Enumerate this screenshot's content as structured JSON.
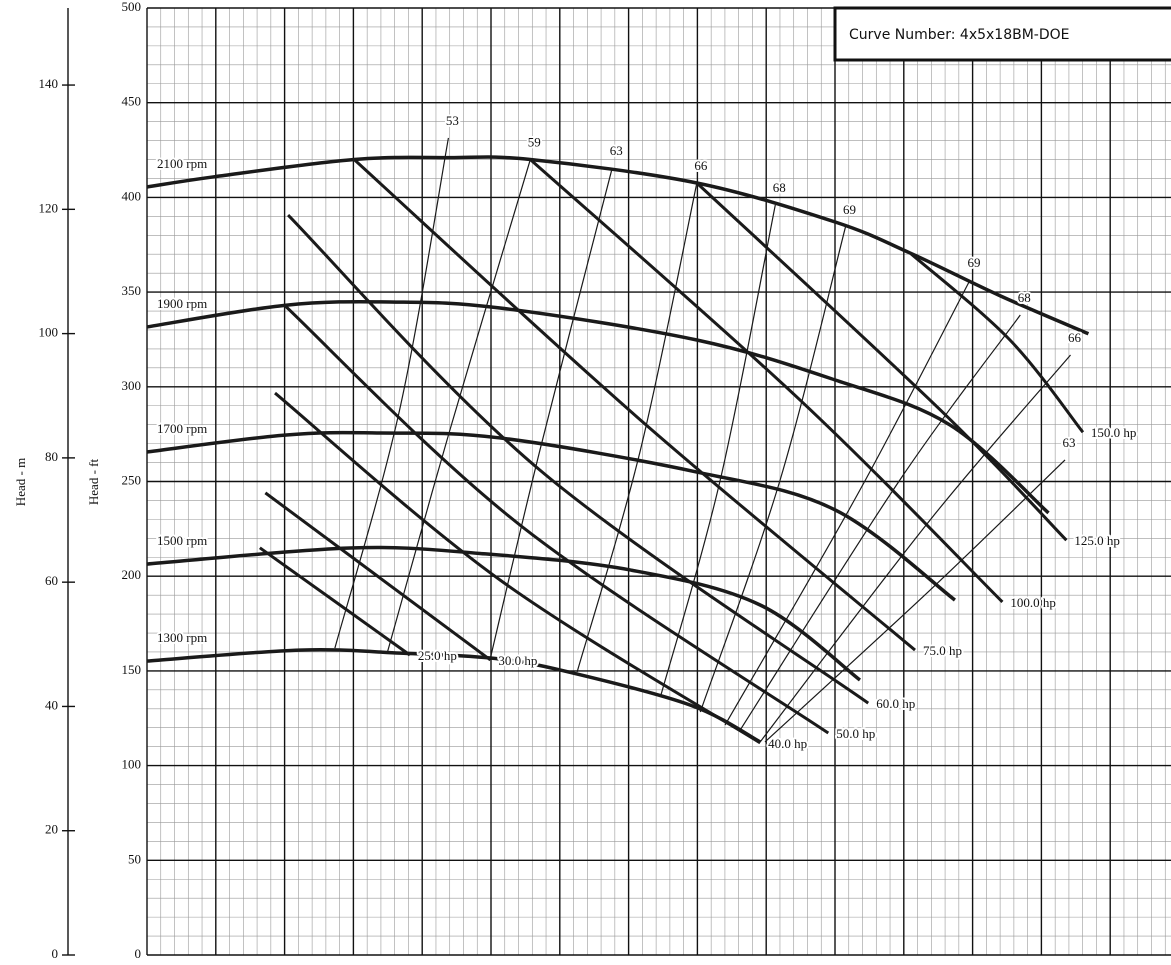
{
  "chart_data": {
    "type": "line",
    "box_text": "Curve Number: 4x5x18BM-DOE",
    "y_label": "Head - ft",
    "y2_label": "Head - m",
    "xlim": [
      0,
      14.88
    ],
    "ylim": [
      0,
      500
    ],
    "yticks": [
      0,
      50,
      100,
      150,
      200,
      250,
      300,
      350,
      400,
      450,
      500
    ],
    "y2lim": [
      0,
      152.4
    ],
    "y2ticks": [
      0,
      20,
      40,
      60,
      80,
      100,
      120,
      140
    ],
    "grid": true,
    "speed_curves": [
      {
        "name": "2100 rpm",
        "color": "#1a1a1a",
        "x": [
          0,
          1.0,
          3.01,
          4.4,
          5.57,
          7.99,
          10.0,
          11.09,
          12.4,
          13.68
        ],
        "values": [
          405.5,
          411,
          420,
          421,
          420,
          407.6,
          387,
          370.6,
          348,
          328
        ]
      },
      {
        "name": "1900 rpm",
        "color": "#1a1a1a",
        "x": [
          0,
          2.0,
          3.53,
          5.13,
          7.99,
          10.0,
          11.67,
          13.1
        ],
        "values": [
          331.6,
          343,
          344.8,
          341.6,
          324.7,
          303.6,
          279.8,
          233.4
        ]
      },
      {
        "name": "1700 rpm",
        "color": "#1a1a1a",
        "x": [
          0,
          2.0,
          3.39,
          5.13,
          7.99,
          10.0,
          11.74
        ],
        "values": [
          265.6,
          274.5,
          275.6,
          273,
          255,
          235,
          187.4
        ]
      },
      {
        "name": "1500 rpm",
        "color": "#1a1a1a",
        "x": [
          0,
          2.95,
          4.84,
          7.02,
          8.91,
          10.36
        ],
        "values": [
          206.4,
          214.9,
          212,
          203.3,
          184.8,
          145.2
        ]
      },
      {
        "name": "1300 rpm",
        "color": "#1a1a1a",
        "x": [
          0,
          2.22,
          3.68,
          4.99,
          6.0,
          7.89,
          8.91
        ],
        "values": [
          155.2,
          161,
          159.4,
          156.8,
          150.5,
          132,
          112.5
        ]
      }
    ],
    "power_curves": [
      {
        "name": "25.0 hp",
        "color": "#1a1a1a",
        "x": [
          1.64,
          3.82
        ],
        "values": [
          215,
          158.4
        ]
      },
      {
        "name": "30.0 hp",
        "color": "#1a1a1a",
        "x": [
          1.72,
          4.99
        ],
        "values": [
          244,
          155.8
        ]
      },
      {
        "name": "40.0 hp",
        "color": "#1a1a1a",
        "x": [
          1.86,
          5.13,
          8.91
        ],
        "values": [
          296.7,
          198,
          112
        ]
      },
      {
        "name": "50.0 hp",
        "color": "#1a1a1a",
        "x": [
          2.0,
          5.42,
          9.9
        ],
        "values": [
          343,
          227,
          117.2
        ]
      },
      {
        "name": "60.0 hp",
        "color": "#1a1a1a",
        "x": [
          2.05,
          5.71,
          10.48
        ],
        "values": [
          390.7,
          256,
          133
        ]
      },
      {
        "name": "75.0 hp",
        "color": "#1a1a1a",
        "x": [
          3.01,
          7.17,
          11.16
        ],
        "values": [
          420,
          282.5,
          161
        ]
      },
      {
        "name": "100.0 hp",
        "color": "#1a1a1a",
        "x": [
          5.57,
          9.49,
          12.43
        ],
        "values": [
          420,
          293,
          186.4
        ]
      },
      {
        "name": "125.0 hp",
        "color": "#1a1a1a",
        "x": [
          7.99,
          11.53,
          13.36
        ],
        "values": [
          407.6,
          287.7,
          219
        ]
      },
      {
        "name": "150.0 hp",
        "color": "#1a1a1a",
        "x": [
          11.09,
          12.54,
          13.6
        ],
        "values": [
          370.6,
          324.7,
          276
        ]
      }
    ],
    "efficiency_curves": [
      {
        "name": "53",
        "color": "#1a1a1a",
        "x": [
          2.73,
          3.67,
          4.38
        ],
        "values": [
          162,
          287.7,
          431.4
        ]
      },
      {
        "name": "59",
        "color": "#1a1a1a",
        "x": [
          3.49,
          4.4,
          5.57
        ],
        "values": [
          159.4,
          277,
          420
        ]
      },
      {
        "name": "63",
        "color": "#1a1a1a",
        "x": [
          4.99,
          5.71,
          6.76
        ],
        "values": [
          156.8,
          266.6,
          415.5
        ]
      },
      {
        "name": "66",
        "color": "#1a1a1a",
        "x": [
          6.25,
          7.17,
          7.99
        ],
        "values": [
          149.4,
          266.6,
          407.6
        ]
      },
      {
        "name": "68",
        "color": "#1a1a1a",
        "x": [
          7.46,
          8.33,
          9.13
        ],
        "values": [
          136.2,
          250.8,
          396
        ]
      },
      {
        "name": "69",
        "color": "#1a1a1a",
        "x": [
          8.04,
          9.2,
          10.15
        ],
        "values": [
          128.3,
          250.8,
          384.4
        ]
      },
      {
        "name": "69",
        "color": "#1a1a1a",
        "x": [
          8.4,
          10.36,
          11.96
        ],
        "values": [
          121.4,
          245.5,
          356.4
        ]
      },
      {
        "name": "68",
        "color": "#1a1a1a",
        "x": [
          8.62,
          10.94,
          12.69
        ],
        "values": [
          118.8,
          250.8,
          337.9
        ]
      },
      {
        "name": "66",
        "color": "#1a1a1a",
        "x": [
          8.91,
          11.38,
          13.42
        ],
        "values": [
          112.5,
          229.7,
          316.8
        ]
      },
      {
        "name": "63",
        "color": "#1a1a1a",
        "x": [
          8.98,
          11.38,
          13.34
        ],
        "values": [
          112.5,
          192.7,
          261.4
        ]
      }
    ]
  }
}
